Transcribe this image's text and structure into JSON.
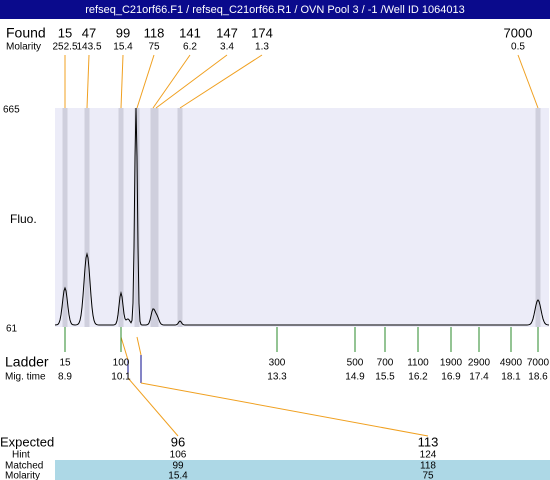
{
  "title": "refseq_C21orf66.F1 / refseq_C21orf66.R1 / OVN Pool 3 / -1 /Well ID 1064013",
  "found": {
    "label": "Found",
    "sub_label": "Molarity",
    "sizes": [
      15,
      47,
      99,
      118,
      141,
      147,
      174,
      7000
    ],
    "molarity": [
      252.5,
      143.5,
      15.4,
      75,
      6.2,
      3.4,
      1.3,
      0.5
    ]
  },
  "plot": {
    "y_label": "Fluo.",
    "y_ticks": [
      665,
      61
    ]
  },
  "ladder": {
    "label": "Ladder",
    "sub_label": "Mig. time",
    "sizes": [
      15,
      100,
      300,
      500,
      700,
      1100,
      1900,
      2900,
      4900,
      7000
    ],
    "mig_times": [
      8.9,
      10.1,
      13.3,
      14.9,
      15.5,
      16.2,
      16.9,
      17.4,
      18.1,
      18.6
    ]
  },
  "expected": {
    "label": "Expected",
    "values": [
      96,
      113
    ],
    "hint_label": "Hint",
    "hint": [
      106,
      124
    ],
    "matched_label": "Matched",
    "matched": [
      99,
      118
    ],
    "molarity_label": "Molarity",
    "molarity": [
      15.4,
      75
    ]
  }
}
